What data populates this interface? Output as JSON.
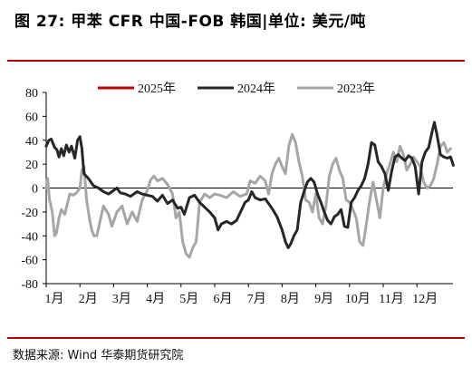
{
  "title": "图 27: 甲苯 CFR 中国-FOB 韩国|单位: 美元/吨",
  "source": "数据来源: Wind 华泰期货研究院",
  "colors": {
    "s2025": "#c00000",
    "s2024": "#262626",
    "s2023": "#a6a6a6",
    "rule": "#b30000"
  },
  "chart_data": {
    "type": "line",
    "title": "图 27: 甲苯 CFR 中国-FOB 韩国|单位: 美元/吨",
    "xlabel": "",
    "ylabel": "",
    "ylim": [
      -80,
      80
    ],
    "yticks": [
      80,
      60,
      40,
      20,
      0,
      -20,
      -40,
      -60,
      -80
    ],
    "x_categories": [
      "1月",
      "2月",
      "3月",
      "4月",
      "5月",
      "6月",
      "7月",
      "8月",
      "9月",
      "10月",
      "11月",
      "12月"
    ],
    "legend_position": "top",
    "series": [
      {
        "name": "2025年",
        "color": "#c00000",
        "points": []
      },
      {
        "name": "2024年",
        "color": "#262626",
        "points": [
          [
            0.0,
            35
          ],
          [
            0.08,
            40
          ],
          [
            0.15,
            41
          ],
          [
            0.25,
            34
          ],
          [
            0.32,
            32
          ],
          [
            0.38,
            26
          ],
          [
            0.45,
            33
          ],
          [
            0.52,
            27
          ],
          [
            0.6,
            36
          ],
          [
            0.68,
            30
          ],
          [
            0.75,
            35
          ],
          [
            0.85,
            25
          ],
          [
            0.93,
            40
          ],
          [
            1.0,
            43
          ],
          [
            1.06,
            33
          ],
          [
            1.12,
            12
          ],
          [
            1.25,
            8
          ],
          [
            1.4,
            2
          ],
          [
            1.55,
            0
          ],
          [
            1.7,
            -3
          ],
          [
            1.85,
            -5
          ],
          [
            2.0,
            -2
          ],
          [
            2.1,
            0
          ],
          [
            2.2,
            -4
          ],
          [
            2.35,
            -5
          ],
          [
            2.5,
            -7
          ],
          [
            2.7,
            -3
          ],
          [
            2.85,
            -5
          ],
          [
            3.0,
            -6
          ],
          [
            3.15,
            -7
          ],
          [
            3.3,
            -11
          ],
          [
            3.45,
            -6
          ],
          [
            3.6,
            -13
          ],
          [
            3.75,
            -10
          ],
          [
            3.9,
            -17
          ],
          [
            4.0,
            -16
          ],
          [
            4.1,
            -22
          ],
          [
            4.25,
            -8
          ],
          [
            4.4,
            -6
          ],
          [
            4.55,
            -12
          ],
          [
            4.7,
            -16
          ],
          [
            4.85,
            -20
          ],
          [
            5.0,
            -25
          ],
          [
            5.1,
            -35
          ],
          [
            5.2,
            -30
          ],
          [
            5.35,
            -28
          ],
          [
            5.5,
            -30
          ],
          [
            5.65,
            -27
          ],
          [
            5.8,
            -18
          ],
          [
            5.9,
            -12
          ],
          [
            6.0,
            -10
          ],
          [
            6.1,
            -3
          ],
          [
            6.2,
            -8
          ],
          [
            6.35,
            -10
          ],
          [
            6.5,
            -9
          ],
          [
            6.7,
            -17
          ],
          [
            6.85,
            -24
          ],
          [
            7.0,
            -35
          ],
          [
            7.1,
            -45
          ],
          [
            7.18,
            -50
          ],
          [
            7.25,
            -47
          ],
          [
            7.35,
            -40
          ],
          [
            7.45,
            -35
          ],
          [
            7.55,
            -12
          ],
          [
            7.65,
            -3
          ],
          [
            7.75,
            5
          ],
          [
            7.85,
            8
          ],
          [
            7.95,
            5
          ],
          [
            8.05,
            -5
          ],
          [
            8.15,
            -12
          ],
          [
            8.25,
            -20
          ],
          [
            8.35,
            -27
          ],
          [
            8.45,
            -30
          ],
          [
            8.55,
            -24
          ],
          [
            8.65,
            -22
          ],
          [
            8.75,
            -18
          ],
          [
            8.85,
            -32
          ],
          [
            8.95,
            -33
          ],
          [
            9.05,
            -12
          ],
          [
            9.15,
            -8
          ],
          [
            9.25,
            -2
          ],
          [
            9.35,
            2
          ],
          [
            9.45,
            8
          ],
          [
            9.55,
            20
          ],
          [
            9.65,
            38
          ],
          [
            9.75,
            36
          ],
          [
            9.85,
            22
          ],
          [
            9.95,
            18
          ],
          [
            10.05,
            12
          ],
          [
            10.15,
            -2
          ],
          [
            10.25,
            14
          ],
          [
            10.35,
            26
          ],
          [
            10.45,
            28
          ],
          [
            10.55,
            25
          ],
          [
            10.65,
            23
          ],
          [
            10.75,
            27
          ],
          [
            10.85,
            25
          ],
          [
            10.95,
            18
          ],
          [
            11.05,
            -5
          ],
          [
            11.15,
            22
          ],
          [
            11.25,
            30
          ],
          [
            11.35,
            34
          ],
          [
            11.45,
            47
          ],
          [
            11.52,
            55
          ],
          [
            11.6,
            44
          ],
          [
            11.7,
            28
          ],
          [
            11.8,
            26
          ],
          [
            11.9,
            25
          ],
          [
            12.0,
            26
          ],
          [
            12.08,
            19
          ]
        ]
      },
      {
        "name": "2023年",
        "color": "#a6a6a6",
        "points": [
          [
            0.0,
            0
          ],
          [
            0.04,
            8
          ],
          [
            0.1,
            -10
          ],
          [
            0.18,
            -20
          ],
          [
            0.25,
            -40
          ],
          [
            0.3,
            -38
          ],
          [
            0.38,
            -25
          ],
          [
            0.45,
            -18
          ],
          [
            0.55,
            -22
          ],
          [
            0.62,
            -14
          ],
          [
            0.7,
            -5
          ],
          [
            0.8,
            -6
          ],
          [
            0.9,
            -4
          ],
          [
            1.0,
            0
          ],
          [
            1.06,
            15
          ],
          [
            1.12,
            18
          ],
          [
            1.2,
            -10
          ],
          [
            1.28,
            -25
          ],
          [
            1.35,
            -35
          ],
          [
            1.42,
            -40
          ],
          [
            1.5,
            -40
          ],
          [
            1.58,
            -30
          ],
          [
            1.7,
            -15
          ],
          [
            1.85,
            -22
          ],
          [
            1.95,
            -32
          ],
          [
            2.1,
            -20
          ],
          [
            2.25,
            -15
          ],
          [
            2.4,
            -30
          ],
          [
            2.55,
            -20
          ],
          [
            2.7,
            -28
          ],
          [
            2.85,
            -10
          ],
          [
            3.0,
            -2
          ],
          [
            3.1,
            7
          ],
          [
            3.2,
            10
          ],
          [
            3.3,
            6
          ],
          [
            3.45,
            8
          ],
          [
            3.6,
            3
          ],
          [
            3.75,
            -5
          ],
          [
            3.85,
            -25
          ],
          [
            3.95,
            -20
          ],
          [
            4.05,
            -45
          ],
          [
            4.15,
            -55
          ],
          [
            4.25,
            -58
          ],
          [
            4.35,
            -50
          ],
          [
            4.45,
            -45
          ],
          [
            4.55,
            -12
          ],
          [
            4.7,
            -5
          ],
          [
            4.85,
            -8
          ],
          [
            5.0,
            -5
          ],
          [
            5.15,
            -6
          ],
          [
            5.35,
            -8
          ],
          [
            5.55,
            -3
          ],
          [
            5.75,
            -7
          ],
          [
            5.95,
            -5
          ],
          [
            6.05,
            6
          ],
          [
            6.2,
            4
          ],
          [
            6.35,
            10
          ],
          [
            6.5,
            6
          ],
          [
            6.6,
            -5
          ],
          [
            6.7,
            12
          ],
          [
            6.8,
            20
          ],
          [
            6.9,
            25
          ],
          [
            7.0,
            18
          ],
          [
            7.1,
            12
          ],
          [
            7.2,
            35
          ],
          [
            7.3,
            45
          ],
          [
            7.4,
            38
          ],
          [
            7.5,
            22
          ],
          [
            7.6,
            10
          ],
          [
            7.7,
            -10
          ],
          [
            7.8,
            -12
          ],
          [
            7.9,
            -20
          ],
          [
            8.0,
            -5
          ],
          [
            8.1,
            -25
          ],
          [
            8.2,
            -30
          ],
          [
            8.3,
            -15
          ],
          [
            8.4,
            10
          ],
          [
            8.5,
            20
          ],
          [
            8.6,
            25
          ],
          [
            8.7,
            15
          ],
          [
            8.8,
            8
          ],
          [
            8.9,
            -10
          ],
          [
            9.0,
            -12
          ],
          [
            9.1,
            -18
          ],
          [
            9.2,
            -25
          ],
          [
            9.3,
            -45
          ],
          [
            9.4,
            -48
          ],
          [
            9.5,
            -30
          ],
          [
            9.6,
            -10
          ],
          [
            9.7,
            5
          ],
          [
            9.8,
            -10
          ],
          [
            9.9,
            -25
          ],
          [
            10.0,
            0
          ],
          [
            10.1,
            12
          ],
          [
            10.2,
            20
          ],
          [
            10.3,
            30
          ],
          [
            10.4,
            22
          ],
          [
            10.5,
            35
          ],
          [
            10.6,
            28
          ],
          [
            10.7,
            15
          ],
          [
            10.8,
            20
          ],
          [
            10.9,
            26
          ],
          [
            11.0,
            22
          ],
          [
            11.1,
            18
          ],
          [
            11.2,
            5
          ],
          [
            11.3,
            0
          ],
          [
            11.4,
            2
          ],
          [
            11.5,
            8
          ],
          [
            11.6,
            20
          ],
          [
            11.7,
            35
          ],
          [
            11.8,
            38
          ],
          [
            11.9,
            30
          ],
          [
            12.0,
            33
          ]
        ]
      }
    ]
  }
}
